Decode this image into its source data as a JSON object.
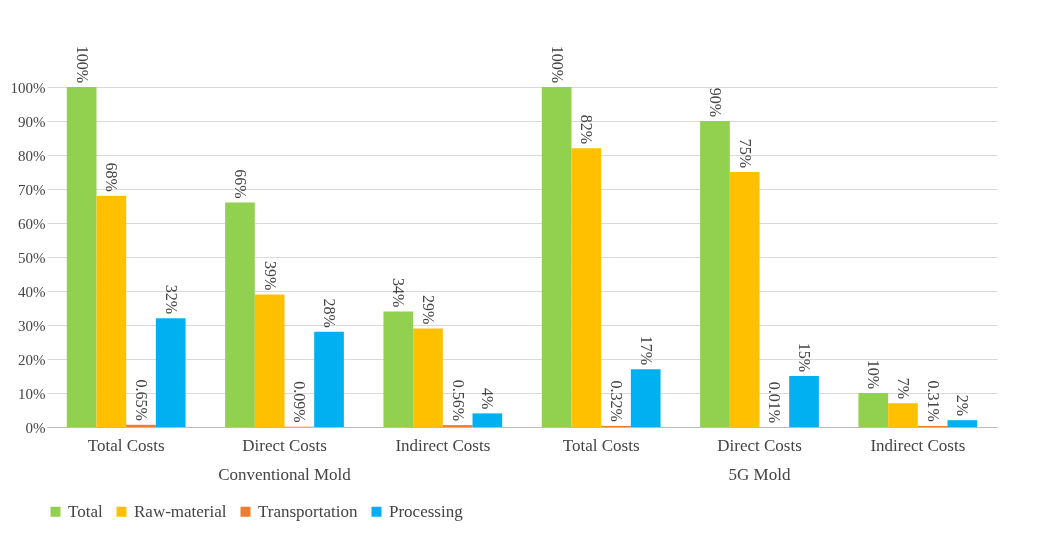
{
  "chart_data": {
    "type": "bar",
    "categories": [
      "Total Costs",
      "Direct Costs",
      "Indirect Costs",
      "Total Costs",
      "Direct Costs",
      "Indirect Costs"
    ],
    "series": [
      {
        "name": "Total",
        "color": "#92d050",
        "values": [
          100,
          66,
          34,
          100,
          90,
          10
        ],
        "value_labels": [
          "100%",
          "66%",
          "34%",
          "100%",
          "90%",
          "10%"
        ]
      },
      {
        "name": "Raw-material",
        "color": "#ffc000",
        "values": [
          68,
          39,
          29,
          82,
          75,
          7
        ],
        "value_labels": [
          "68%",
          "39%",
          "29%",
          "82%",
          "75%",
          "7%"
        ]
      },
      {
        "name": "Transportation",
        "color": "#ed7d31",
        "values": [
          0.65,
          0.09,
          0.56,
          0.32,
          0.01,
          0.31
        ],
        "value_labels": [
          "0.65%",
          "0.09%",
          "0.56%",
          "0.32%",
          "0.01%",
          "0.31%"
        ]
      },
      {
        "name": "Processing",
        "color": "#00b0f0",
        "values": [
          32,
          28,
          4,
          17,
          15,
          2
        ],
        "value_labels": [
          "32%",
          "28%",
          "4%",
          "17%",
          "15%",
          "2%"
        ]
      }
    ],
    "ylim": [
      0,
      100
    ],
    "yticks": [
      {
        "value": 0,
        "label": "0%"
      },
      {
        "value": 10,
        "label": "10%"
      },
      {
        "value": 20,
        "label": "20%"
      },
      {
        "value": 30,
        "label": "30%"
      },
      {
        "value": 40,
        "label": "40%"
      },
      {
        "value": 50,
        "label": "50%"
      },
      {
        "value": 60,
        "label": "60%"
      },
      {
        "value": 70,
        "label": "70%"
      },
      {
        "value": 80,
        "label": "80%"
      },
      {
        "value": 90,
        "label": "90%"
      },
      {
        "value": 100,
        "label": "100%"
      }
    ],
    "annotations": [
      "Conventional Mold",
      "5G Mold"
    ],
    "grid": "y",
    "legend": "bottom"
  }
}
